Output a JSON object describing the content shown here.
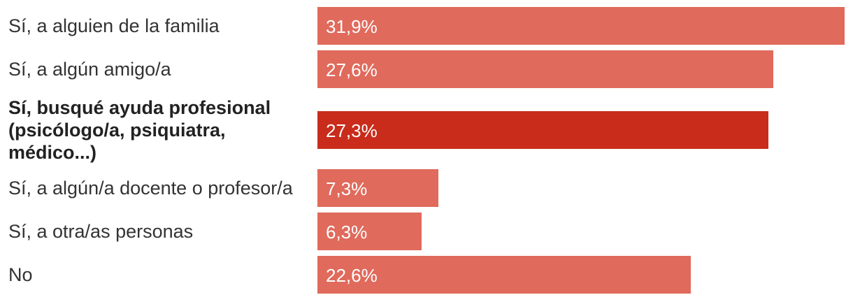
{
  "chart_data": {
    "type": "bar",
    "orientation": "horizontal",
    "categories": [
      "Sí, a alguien de la familia",
      "Sí, a algún amigo/a",
      "Sí, busqué ayuda profesional (psicólogo/a, psiquiatra, médico...)",
      "Sí, a algún/a docente o profesor/a",
      "Sí, a otra/as personas",
      "No"
    ],
    "values": [
      31.9,
      27.6,
      27.3,
      7.3,
      6.3,
      22.6
    ],
    "value_labels": [
      "31,9%",
      "27,6%",
      "27,3%",
      "7,3%",
      "6,3%",
      "22,6%"
    ],
    "highlight_index": 2,
    "colors": {
      "bar": "#e06a5c",
      "highlight": "#c92c1b",
      "label_text": "#ffffff",
      "category_text": "#333333"
    },
    "xlim": [
      0,
      31.9
    ],
    "grid": false,
    "legend": "none"
  }
}
